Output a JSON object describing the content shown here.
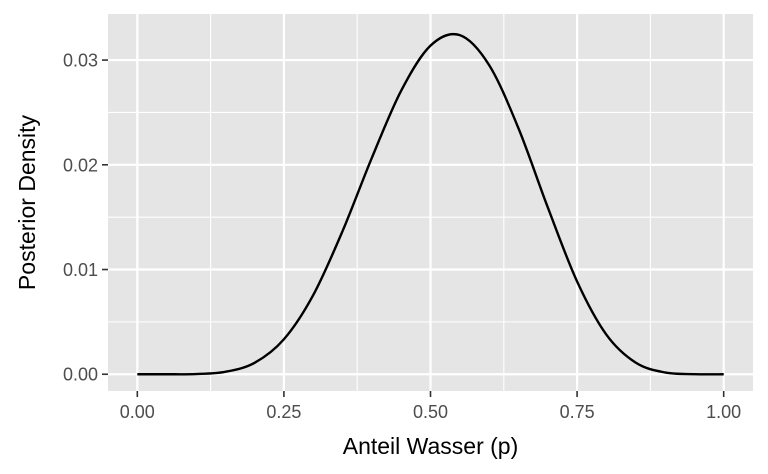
{
  "chart_data": {
    "type": "line",
    "title": "",
    "xlabel": "Anteil Wasser (p)",
    "ylabel": "Posterior Density",
    "xlim": [
      -0.05,
      1.05
    ],
    "ylim": [
      -0.0016,
      0.0344
    ],
    "x_ticks": [
      0.0,
      0.25,
      0.5,
      0.75,
      1.0
    ],
    "x_tick_labels": [
      "0.00",
      "0.25",
      "0.50",
      "0.75",
      "1.00"
    ],
    "y_ticks": [
      0.0,
      0.01,
      0.02,
      0.03
    ],
    "y_tick_labels": [
      "0.00",
      "0.01",
      "0.02",
      "0.03"
    ],
    "grid": true,
    "legend": "none",
    "colors": {
      "panel": "#e5e5e5",
      "grid": "#ffffff",
      "line": "#000000",
      "tick": "#333333"
    },
    "series": [
      {
        "x": [
          0.0,
          0.05,
          0.1,
          0.15,
          0.2,
          0.25,
          0.3,
          0.35,
          0.4,
          0.45,
          0.5,
          0.55,
          0.6,
          0.65,
          0.7,
          0.75,
          0.8,
          0.85,
          0.9,
          0.95,
          1.0
        ],
        "y": [
          0.0,
          1e-07,
          2e-05,
          0.00023,
          0.00109,
          0.00334,
          0.00756,
          0.01367,
          0.02067,
          0.02708,
          0.03138,
          0.03238,
          0.02952,
          0.02349,
          0.01594,
          0.00886,
          0.00378,
          0.00111,
          0.00017,
          6e-06,
          0.0
        ]
      }
    ]
  }
}
